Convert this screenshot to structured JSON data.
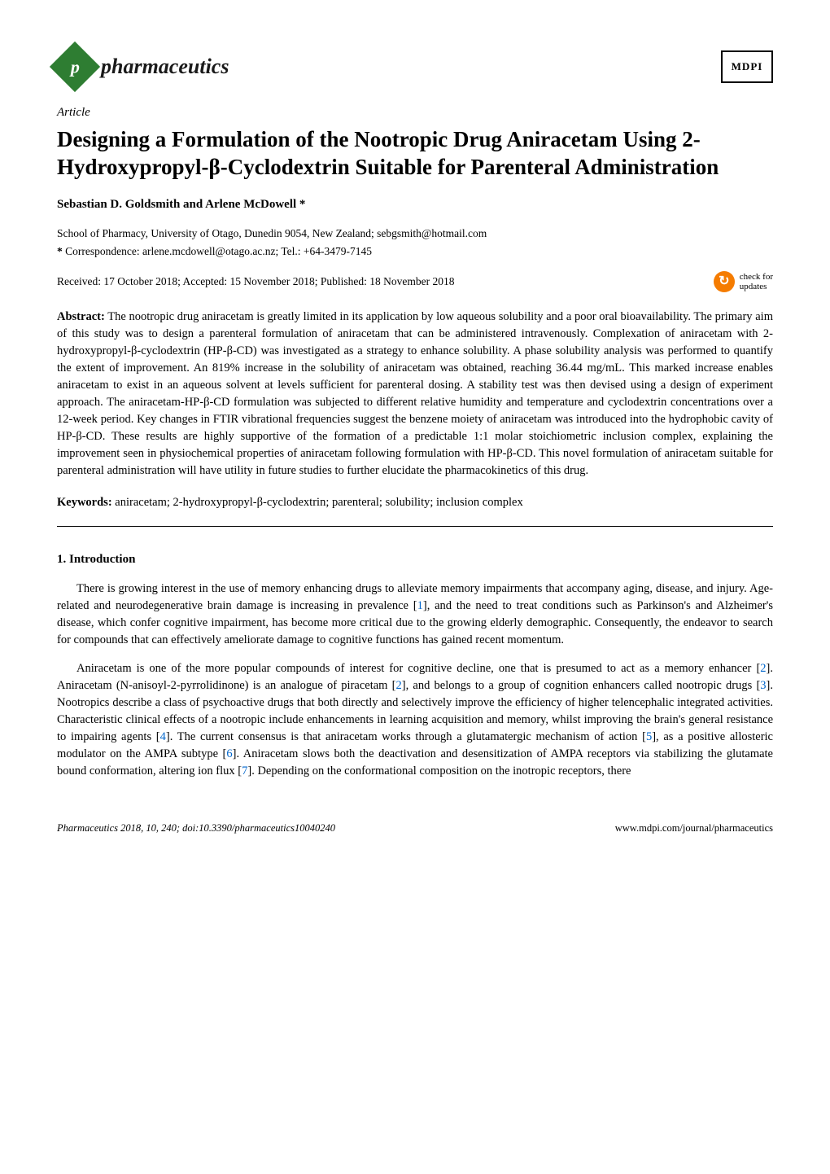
{
  "journal": {
    "logo_letter": "p",
    "logo_bg": "#2e7d32",
    "name": "pharmaceutics",
    "publisher_logo_text": "MDPI"
  },
  "article": {
    "type": "Article",
    "title": "Designing a Formulation of the Nootropic Drug Aniracetam Using 2-Hydroxypropyl-β-Cyclodextrin Suitable for Parenteral Administration",
    "authors": "Sebastian D. Goldsmith and Arlene McDowell *",
    "affiliation": "School of Pharmacy, University of Otago, Dunedin 9054, New Zealand; sebgsmith@hotmail.com",
    "correspondence_label": "*",
    "correspondence": "Correspondence: arlene.mcdowell@otago.ac.nz; Tel.: +64-3479-7145",
    "dates": "Received: 17 October 2018; Accepted: 15 November 2018; Published: 18 November 2018",
    "check_updates_line1": "check for",
    "check_updates_line2": "updates"
  },
  "abstract": {
    "label": "Abstract:",
    "text": "The nootropic drug aniracetam is greatly limited in its application by low aqueous solubility and a poor oral bioavailability. The primary aim of this study was to design a parenteral formulation of aniracetam that can be administered intravenously. Complexation of aniracetam with 2-hydroxypropyl-β-cyclodextrin (HP-β-CD) was investigated as a strategy to enhance solubility. A phase solubility analysis was performed to quantify the extent of improvement. An 819% increase in the solubility of aniracetam was obtained, reaching 36.44 mg/mL. This marked increase enables aniracetam to exist in an aqueous solvent at levels sufficient for parenteral dosing. A stability test was then devised using a design of experiment approach. The aniracetam-HP-β-CD formulation was subjected to different relative humidity and temperature and cyclodextrin concentrations over a 12-week period. Key changes in FTIR vibrational frequencies suggest the benzene moiety of aniracetam was introduced into the hydrophobic cavity of HP-β-CD. These results are highly supportive of the formation of a predictable 1:1 molar stoichiometric inclusion complex, explaining the improvement seen in physiochemical properties of aniracetam following formulation with HP-β-CD. This novel formulation of aniracetam suitable for parenteral administration will have utility in future studies to further elucidate the pharmacokinetics of this drug."
  },
  "keywords": {
    "label": "Keywords:",
    "text": "aniracetam; 2-hydroxypropyl-β-cyclodextrin; parenteral; solubility; inclusion complex"
  },
  "section": {
    "heading": "1. Introduction",
    "para1_pre": "There is growing interest in the use of memory enhancing drugs to alleviate memory impairments that accompany aging, disease, and injury. Age-related and neurodegenerative brain damage is increasing in prevalence [",
    "para1_ref1": "1",
    "para1_post": "], and the need to treat conditions such as Parkinson's and Alzheimer's disease, which confer cognitive impairment, has become more critical due to the growing elderly demographic. Consequently, the endeavor to search for compounds that can effectively ameliorate damage to cognitive functions has gained recent momentum.",
    "para2_a": "Aniracetam is one of the more popular compounds of interest for cognitive decline, one that is presumed to act as a memory enhancer [",
    "para2_ref2a": "2",
    "para2_b": "]. Aniracetam (N-anisoyl-2-pyrrolidinone) is an analogue of piracetam [",
    "para2_ref2b": "2",
    "para2_c": "], and belongs to a group of cognition enhancers called nootropic drugs [",
    "para2_ref3": "3",
    "para2_d": "]. Nootropics describe a class of psychoactive drugs that both directly and selectively improve the efficiency of higher telencephalic integrated activities. Characteristic clinical effects of a nootropic include enhancements in learning acquisition and memory, whilst improving the brain's general resistance to impairing agents [",
    "para2_ref4": "4",
    "para2_e": "]. The current consensus is that aniracetam works through a glutamatergic mechanism of action [",
    "para2_ref5": "5",
    "para2_f": "], as a positive allosteric modulator on the AMPA subtype [",
    "para2_ref6": "6",
    "para2_g": "]. Aniracetam slows both the deactivation and desensitization of AMPA receptors via stabilizing the glutamate bound conformation, altering ion flux [",
    "para2_ref7": "7",
    "para2_h": "]. Depending on the conformational composition on the inotropic receptors, there"
  },
  "footer": {
    "citation_journal": "Pharmaceutics",
    "citation_rest": " 2018, 10, 240; doi:10.3390/pharmaceutics10040240",
    "url": "www.mdpi.com/journal/pharmaceutics"
  },
  "colors": {
    "ref_link": "#0066cc",
    "check_icon_bg": "#f57c00"
  }
}
